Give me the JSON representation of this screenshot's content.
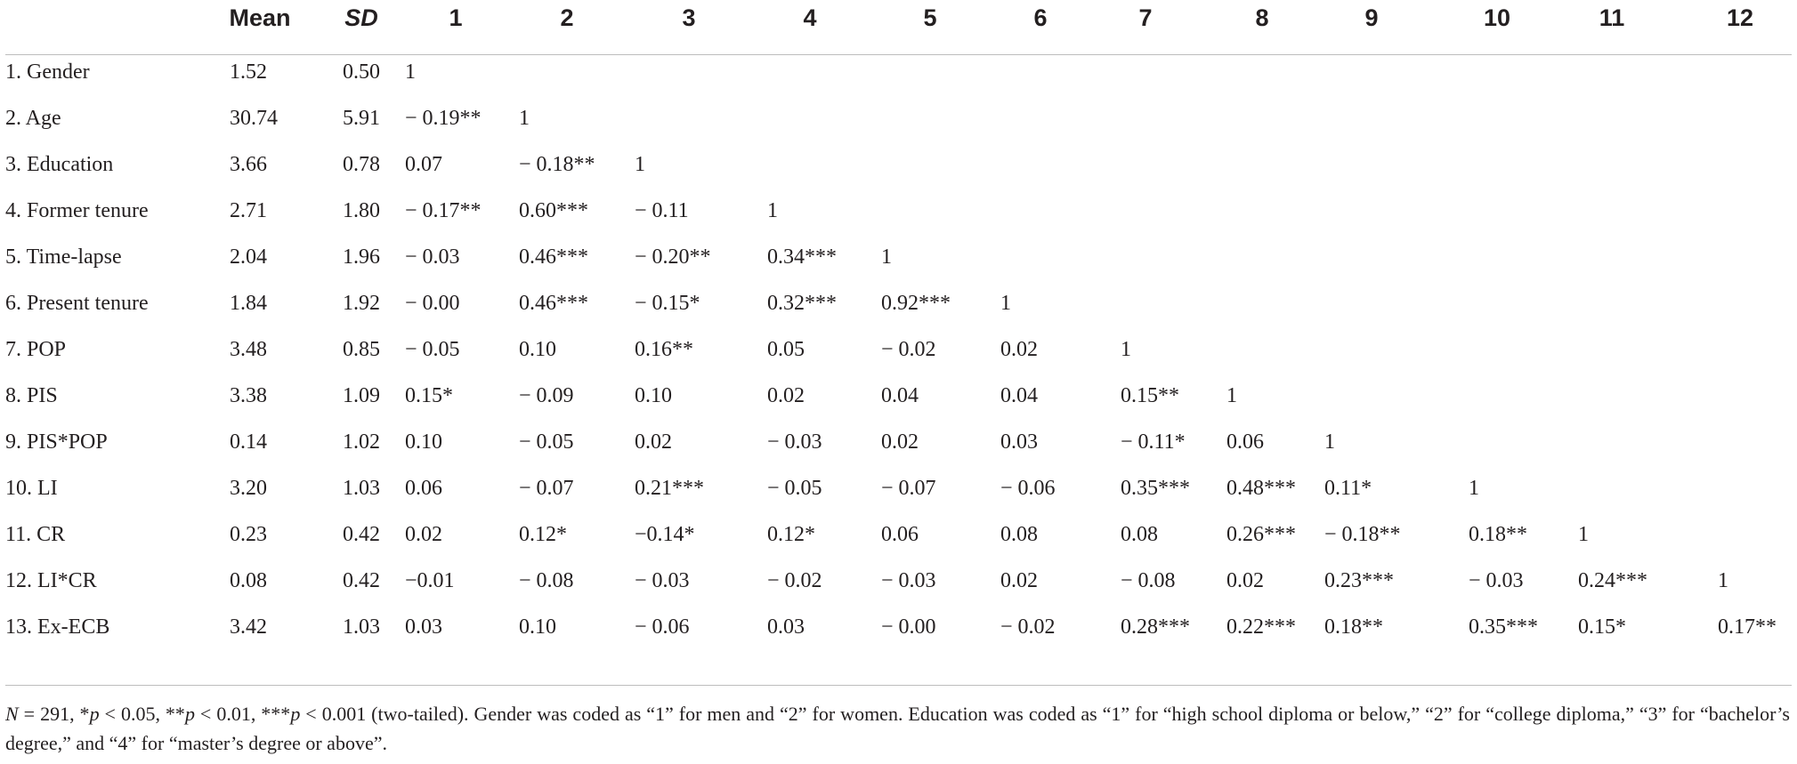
{
  "table": {
    "columns": [
      "Mean",
      "SD",
      "1",
      "2",
      "3",
      "4",
      "5",
      "6",
      "7",
      "8",
      "9",
      "10",
      "11",
      "12"
    ],
    "rows": [
      {
        "label": "1. Gender",
        "values": [
          "1.52",
          "0.50",
          "1"
        ]
      },
      {
        "label": "2. Age",
        "values": [
          "30.74",
          "5.91",
          "− 0.19**",
          "1"
        ]
      },
      {
        "label": "3. Education",
        "values": [
          "3.66",
          "0.78",
          "0.07",
          "− 0.18**",
          "1"
        ]
      },
      {
        "label": "4. Former tenure",
        "values": [
          "2.71",
          "1.80",
          "− 0.17**",
          "0.60***",
          "− 0.11",
          "1"
        ]
      },
      {
        "label": "5. Time-lapse",
        "values": [
          "2.04",
          "1.96",
          "− 0.03",
          "0.46***",
          "− 0.20**",
          "0.34***",
          "1"
        ]
      },
      {
        "label": "6. Present tenure",
        "values": [
          "1.84",
          "1.92",
          "− 0.00",
          "0.46***",
          "− 0.15*",
          "0.32***",
          "0.92***",
          "1"
        ]
      },
      {
        "label": "7. POP",
        "values": [
          "3.48",
          "0.85",
          "− 0.05",
          "0.10",
          "0.16**",
          "0.05",
          "− 0.02",
          "0.02",
          "1"
        ]
      },
      {
        "label": "8. PIS",
        "values": [
          "3.38",
          "1.09",
          "0.15*",
          "− 0.09",
          "0.10",
          "0.02",
          "0.04",
          "0.04",
          "0.15**",
          "1"
        ]
      },
      {
        "label": "9. PIS*POP",
        "values": [
          "0.14",
          "1.02",
          "0.10",
          "− 0.05",
          "0.02",
          "− 0.03",
          "0.02",
          "0.03",
          "− 0.11*",
          "0.06",
          "1"
        ]
      },
      {
        "label": "10. LI",
        "values": [
          "3.20",
          "1.03",
          "0.06",
          "− 0.07",
          "0.21***",
          "− 0.05",
          "− 0.07",
          "− 0.06",
          "0.35***",
          "0.48***",
          "0.11*",
          "1"
        ]
      },
      {
        "label": "11. CR",
        "values": [
          "0.23",
          "0.42",
          "0.02",
          "0.12*",
          "−0.14*",
          "0.12*",
          "0.06",
          "0.08",
          "0.08",
          "0.26***",
          "− 0.18**",
          "0.18**",
          "1"
        ]
      },
      {
        "label": "12. LI*CR",
        "values": [
          "0.08",
          "0.42",
          "−0.01",
          "− 0.08",
          "− 0.03",
          "− 0.02",
          "− 0.03",
          "0.02",
          "− 0.08",
          "0.02",
          "0.23***",
          "− 0.03",
          "0.24***",
          "1"
        ]
      },
      {
        "label": "13. Ex-ECB",
        "values": [
          "3.42",
          "1.03",
          "0.03",
          "0.10",
          "− 0.06",
          "0.03",
          "− 0.00",
          "− 0.02",
          "0.28***",
          "0.22***",
          "0.18**",
          "0.35***",
          "0.15*",
          "0.17**"
        ]
      }
    ]
  },
  "footnote": {
    "n_label": "N",
    "n_text": " = 291, *",
    "p1": "p",
    "t1": " < 0.05, **",
    "p2": "p",
    "t2": " < 0.01, ***",
    "p3": "p",
    "t3": " < 0.001 (two-tailed). Gender was coded as “1” for men and “2” for women. Education was coded as “1” for “high school diploma or below,” “2” for “college diploma,” “3” for “bachelor’s degree,” and “4” for “master’s degree or above”."
  }
}
